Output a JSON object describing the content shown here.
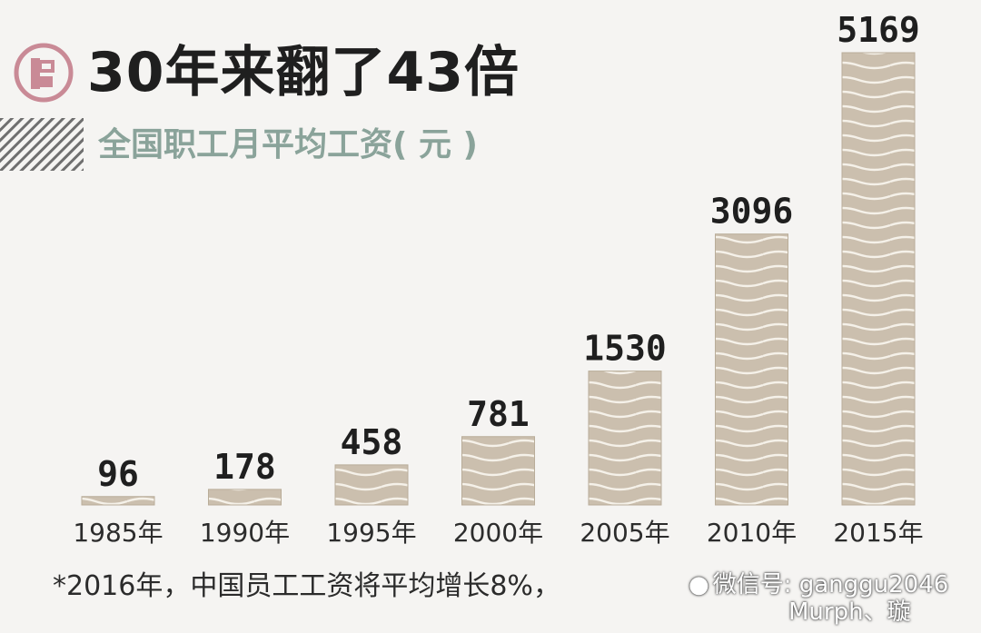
{
  "header": {
    "logo_icon": "red-circle-logo-icon",
    "title": "30年来翻了43倍",
    "subtitle": "全国职工月平均工资( 元 )"
  },
  "chart_data": {
    "type": "bar",
    "title": "30年来翻了43倍",
    "subtitle": "全国职工月平均工资( 元 )",
    "categories": [
      "1985年",
      "1990年",
      "1995年",
      "2000年",
      "2005年",
      "2010年",
      "2015年"
    ],
    "values": [
      96,
      178,
      458,
      781,
      1530,
      3096,
      5169
    ],
    "value_labels": [
      "96",
      "178",
      "458",
      "781",
      "1530",
      "3096",
      "5169"
    ],
    "ylim": [
      0,
      5169
    ],
    "grid": false,
    "bar_color": "#cbbfae",
    "wave_color": "#f5f1e9"
  },
  "footnote": "*2016年，中国员工工资将平均增长8%，",
  "watermark": {
    "icon": "weibo-icon",
    "line1": "微信号: ganggu2046",
    "line2": "Murph、璇"
  }
}
